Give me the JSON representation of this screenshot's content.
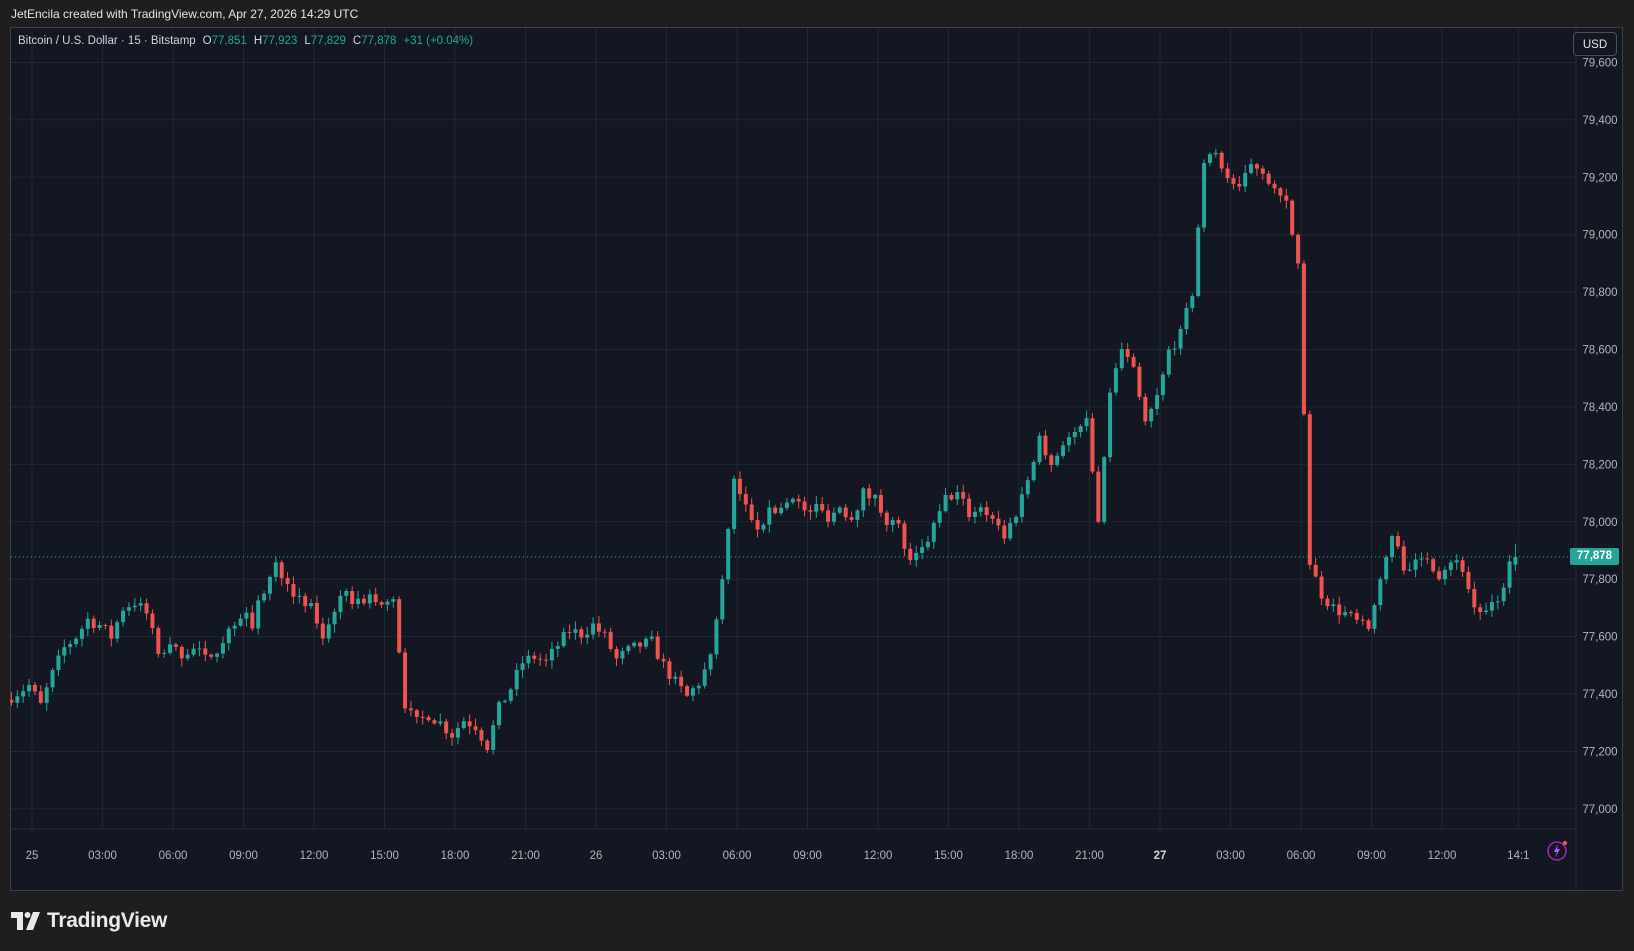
{
  "header": {
    "attribution": "JetEncila created with TradingView.com, Apr 27, 2026 14:29 UTC"
  },
  "legend": {
    "symbol": "Bitcoin / U.S. Dollar · 15 · Bitstamp",
    "o_label": "O",
    "o_value": "77,851",
    "h_label": "H",
    "h_value": "77,923",
    "l_label": "L",
    "l_value": "77,829",
    "c_label": "C",
    "c_value": "77,878",
    "change": "+31 (+0.04%)"
  },
  "currency_button": "USD",
  "last_price_label": "77,878",
  "brand": {
    "name": "TradingView",
    "logo_icon": "tradingview-logo-icon"
  },
  "colors": {
    "background": "#131722",
    "up": "#26a69a",
    "down": "#ef5350",
    "grid": "#232734",
    "text": "#b2b5be"
  },
  "chart_data": {
    "type": "candlestick",
    "symbol": "Bitcoin / U.S. Dollar",
    "interval": "15",
    "exchange": "Bitstamp",
    "currency": "USD",
    "ylim": [
      76930,
      79720
    ],
    "y_ticks": [
      77000,
      77200,
      77400,
      77600,
      77800,
      78000,
      78200,
      78400,
      78600,
      78800,
      79000,
      79200,
      79400,
      79600
    ],
    "y_tick_labels": [
      "77,000",
      "77,200",
      "77,400",
      "77,600",
      "77,800",
      "78,000",
      "78,200",
      "78,400",
      "78,600",
      "78,800",
      "79,000",
      "79,200",
      "79,400",
      "79,600"
    ],
    "x_ticks": [
      "25",
      "03:00",
      "06:00",
      "09:00",
      "12:00",
      "15:00",
      "18:00",
      "21:00",
      "26",
      "03:00",
      "06:00",
      "09:00",
      "12:00",
      "15:00",
      "18:00",
      "21:00",
      "27",
      "03:00",
      "06:00",
      "09:00",
      "12:00",
      "14:1"
    ],
    "x_tick_hours": [
      0,
      3,
      6,
      9,
      12,
      15,
      18,
      21,
      24,
      27,
      30,
      33,
      36,
      39,
      42,
      45,
      48,
      51,
      54,
      57,
      60,
      63.25
    ],
    "x_start_hour": -1.0,
    "grid": true,
    "last_price": 77878,
    "last_ohlc": {
      "open": 77851,
      "high": 77923,
      "low": 77829,
      "close": 77878
    },
    "path": [
      [
        -1.0,
        77380
      ],
      [
        0.0,
        77430
      ],
      [
        0.5,
        77360
      ],
      [
        1.0,
        77470
      ],
      [
        1.5,
        77560
      ],
      [
        2.0,
        77600
      ],
      [
        2.5,
        77660
      ],
      [
        3.0,
        77640
      ],
      [
        3.5,
        77600
      ],
      [
        4.0,
        77700
      ],
      [
        4.5,
        77720
      ],
      [
        5.0,
        77680
      ],
      [
        5.5,
        77540
      ],
      [
        6.0,
        77560
      ],
      [
        6.5,
        77540
      ],
      [
        7.0,
        77560
      ],
      [
        7.5,
        77520
      ],
      [
        8.0,
        77560
      ],
      [
        8.5,
        77620
      ],
      [
        9.0,
        77680
      ],
      [
        9.5,
        77650
      ],
      [
        10.0,
        77760
      ],
      [
        10.5,
        77850
      ],
      [
        11.0,
        77800
      ],
      [
        11.5,
        77720
      ],
      [
        12.0,
        77700
      ],
      [
        12.5,
        77600
      ],
      [
        13.0,
        77700
      ],
      [
        13.5,
        77740
      ],
      [
        14.0,
        77720
      ],
      [
        14.5,
        77740
      ],
      [
        15.0,
        77700
      ],
      [
        15.5,
        77740
      ],
      [
        16.0,
        77350
      ],
      [
        16.5,
        77300
      ],
      [
        17.0,
        77330
      ],
      [
        17.5,
        77300
      ],
      [
        18.0,
        77260
      ],
      [
        18.5,
        77310
      ],
      [
        19.0,
        77290
      ],
      [
        19.5,
        77220
      ],
      [
        20.0,
        77350
      ],
      [
        20.5,
        77420
      ],
      [
        21.0,
        77510
      ],
      [
        21.5,
        77530
      ],
      [
        22.0,
        77510
      ],
      [
        22.5,
        77570
      ],
      [
        23.0,
        77620
      ],
      [
        23.5,
        77610
      ],
      [
        24.0,
        77640
      ],
      [
        24.5,
        77600
      ],
      [
        25.0,
        77520
      ],
      [
        25.5,
        77550
      ],
      [
        26.0,
        77570
      ],
      [
        26.5,
        77580
      ],
      [
        27.0,
        77500
      ],
      [
        27.5,
        77440
      ],
      [
        28.0,
        77390
      ],
      [
        28.5,
        77440
      ],
      [
        29.0,
        77520
      ],
      [
        29.5,
        77800
      ],
      [
        30.0,
        78150
      ],
      [
        30.5,
        78050
      ],
      [
        31.0,
        77990
      ],
      [
        31.5,
        78030
      ],
      [
        32.0,
        78050
      ],
      [
        32.5,
        78100
      ],
      [
        33.0,
        78030
      ],
      [
        33.5,
        78050
      ],
      [
        34.0,
        78020
      ],
      [
        34.5,
        78050
      ],
      [
        35.0,
        78020
      ],
      [
        35.5,
        78100
      ],
      [
        36.0,
        78080
      ],
      [
        36.5,
        78010
      ],
      [
        37.0,
        77980
      ],
      [
        37.5,
        77850
      ],
      [
        38.0,
        77900
      ],
      [
        38.5,
        77980
      ],
      [
        39.0,
        78080
      ],
      [
        39.5,
        78100
      ],
      [
        40.0,
        78030
      ],
      [
        40.5,
        78050
      ],
      [
        41.0,
        78020
      ],
      [
        41.5,
        77950
      ],
      [
        42.0,
        78030
      ],
      [
        42.5,
        78150
      ],
      [
        43.0,
        78300
      ],
      [
        43.5,
        78200
      ],
      [
        44.0,
        78280
      ],
      [
        44.5,
        78300
      ],
      [
        45.0,
        78350
      ],
      [
        45.5,
        78000
      ],
      [
        46.0,
        78450
      ],
      [
        46.5,
        78600
      ],
      [
        47.0,
        78520
      ],
      [
        47.5,
        78350
      ],
      [
        48.0,
        78420
      ],
      [
        48.5,
        78600
      ],
      [
        49.0,
        78650
      ],
      [
        49.5,
        78800
      ],
      [
        50.0,
        79250
      ],
      [
        50.5,
        79280
      ],
      [
        51.0,
        79200
      ],
      [
        51.5,
        79150
      ],
      [
        52.0,
        79250
      ],
      [
        52.5,
        79230
      ],
      [
        53.0,
        79150
      ],
      [
        53.5,
        79100
      ],
      [
        54.0,
        78900
      ],
      [
        54.5,
        77850
      ],
      [
        55.0,
        77750
      ],
      [
        55.5,
        77700
      ],
      [
        56.0,
        77680
      ],
      [
        56.5,
        77650
      ],
      [
        57.0,
        77620
      ],
      [
        57.5,
        77800
      ],
      [
        58.0,
        77950
      ],
      [
        58.5,
        77850
      ],
      [
        59.0,
        77850
      ],
      [
        59.5,
        77880
      ],
      [
        60.0,
        77820
      ],
      [
        60.5,
        77870
      ],
      [
        61.0,
        77840
      ],
      [
        61.5,
        77700
      ],
      [
        62.0,
        77680
      ],
      [
        62.5,
        77720
      ],
      [
        63.0,
        77850
      ],
      [
        63.25,
        77878
      ]
    ]
  }
}
